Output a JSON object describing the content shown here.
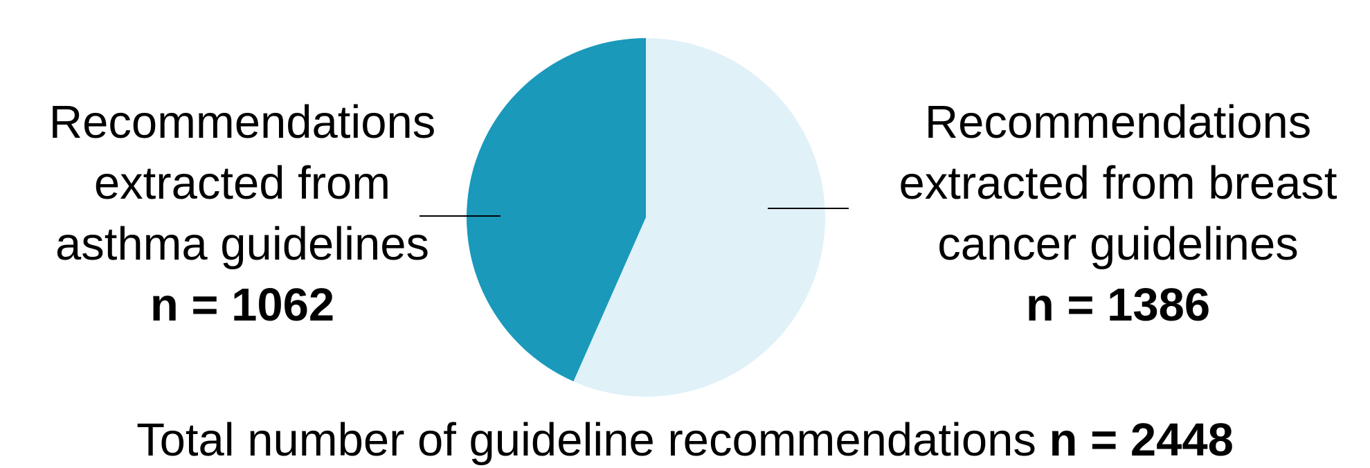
{
  "chart_data": {
    "type": "pie",
    "slices": [
      {
        "label_lines": [
          "Recommendations",
          "extracted from",
          "asthma guidelines"
        ],
        "count_label": "n = 1062",
        "value": 1062,
        "color": "#1a99bb"
      },
      {
        "label_lines": [
          "Recommendations",
          "extracted from breast",
          "cancer guidelines"
        ],
        "count_label": "n = 1386",
        "value": 1386,
        "color": "#e0f1f8"
      }
    ],
    "total": {
      "text": "Total number of guideline recommendations",
      "value_label": "n = 2448",
      "value": 2448
    }
  }
}
